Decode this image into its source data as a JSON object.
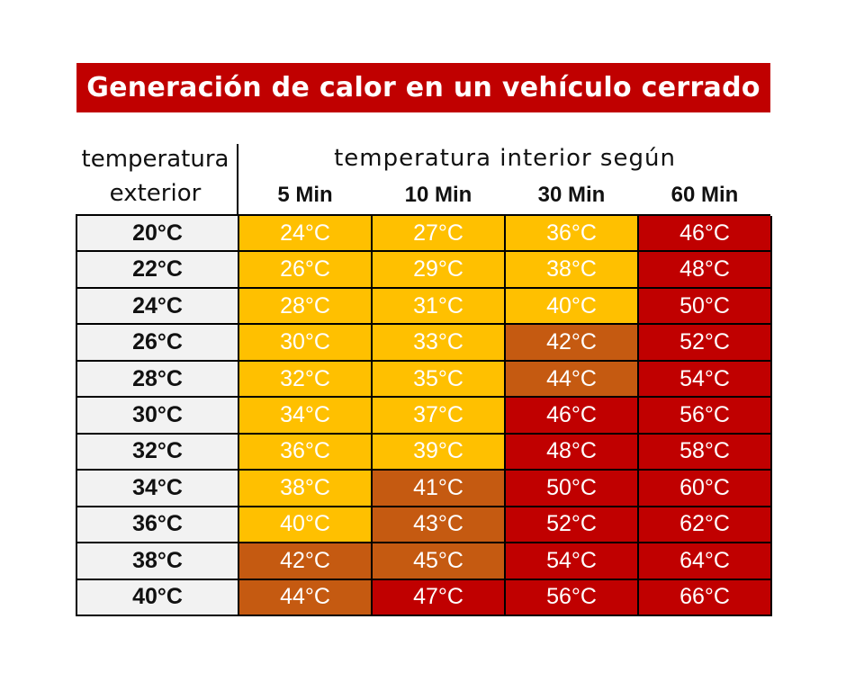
{
  "chart_data": {
    "type": "table",
    "title": "Generación de calor en un vehículo cerrado",
    "row_header": "temperatura exterior",
    "row_header_lines": [
      "temperatura",
      "exterior"
    ],
    "column_group_header": "temperatura interior según",
    "columns": [
      "5 Min",
      "10 Min",
      "30 Min",
      "60 Min"
    ],
    "rows": [
      {
        "exterior": "20°C",
        "values": [
          "24°C",
          "27°C",
          "36°C",
          "46°C"
        ],
        "levels": [
          1,
          1,
          1,
          3
        ]
      },
      {
        "exterior": "22°C",
        "values": [
          "26°C",
          "29°C",
          "38°C",
          "48°C"
        ],
        "levels": [
          1,
          1,
          1,
          3
        ]
      },
      {
        "exterior": "24°C",
        "values": [
          "28°C",
          "31°C",
          "40°C",
          "50°C"
        ],
        "levels": [
          1,
          1,
          1,
          3
        ]
      },
      {
        "exterior": "26°C",
        "values": [
          "30°C",
          "33°C",
          "42°C",
          "52°C"
        ],
        "levels": [
          1,
          1,
          2,
          3
        ]
      },
      {
        "exterior": "28°C",
        "values": [
          "32°C",
          "35°C",
          "44°C",
          "54°C"
        ],
        "levels": [
          1,
          1,
          2,
          3
        ]
      },
      {
        "exterior": "30°C",
        "values": [
          "34°C",
          "37°C",
          "46°C",
          "56°C"
        ],
        "levels": [
          1,
          1,
          3,
          3
        ]
      },
      {
        "exterior": "32°C",
        "values": [
          "36°C",
          "39°C",
          "48°C",
          "58°C"
        ],
        "levels": [
          1,
          1,
          3,
          3
        ]
      },
      {
        "exterior": "34°C",
        "values": [
          "38°C",
          "41°C",
          "50°C",
          "60°C"
        ],
        "levels": [
          1,
          2,
          3,
          3
        ]
      },
      {
        "exterior": "36°C",
        "values": [
          "40°C",
          "43°C",
          "52°C",
          "62°C"
        ],
        "levels": [
          1,
          2,
          3,
          3
        ]
      },
      {
        "exterior": "38°C",
        "values": [
          "42°C",
          "45°C",
          "54°C",
          "64°C"
        ],
        "levels": [
          2,
          2,
          3,
          3
        ]
      },
      {
        "exterior": "40°C",
        "values": [
          "44°C",
          "47°C",
          "56°C",
          "66°C"
        ],
        "levels": [
          2,
          3,
          3,
          3
        ]
      }
    ]
  },
  "colors": {
    "banner": "#c00000",
    "level_1": "#ffc000",
    "level_2": "#c55a11",
    "level_3": "#c00000",
    "exterior_cell": "#f2f2f2"
  }
}
